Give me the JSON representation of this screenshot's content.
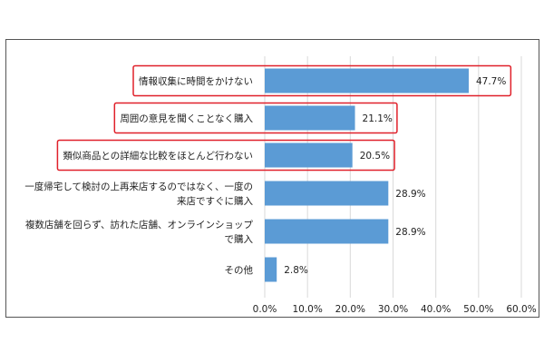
{
  "chart_data": {
    "type": "bar",
    "orientation": "horizontal",
    "categories": [
      [
        "情報収集に時間をかけない"
      ],
      [
        "周囲の意見を聞くことなく購入"
      ],
      [
        "類似商品との詳細な比較をほとんど行わない"
      ],
      [
        "一度帰宅して検討の上再来店するのではなく、一度の",
        "来店ですぐに購入"
      ],
      [
        "複数店舗を回らず、訪れた店舗、オンラインショップ",
        "で購入"
      ],
      [
        "その他"
      ]
    ],
    "values": [
      47.7,
      21.1,
      20.5,
      28.9,
      28.9,
      2.8
    ],
    "value_labels": [
      "47.7%",
      "21.1%",
      "20.5%",
      "28.9%",
      "28.9%",
      "2.8%"
    ],
    "highlighted": [
      true,
      true,
      true,
      false,
      false,
      false
    ],
    "xlim": [
      0,
      60
    ],
    "x_ticks": [
      "0.0%",
      "10.0%",
      "20.0%",
      "30.0%",
      "40.0%",
      "50.0%",
      "60.0%"
    ],
    "grid": "vertical",
    "bar_color": "#5b9bd5",
    "highlight_color": "#e0202a",
    "grid_color": "#d9d9d9"
  }
}
